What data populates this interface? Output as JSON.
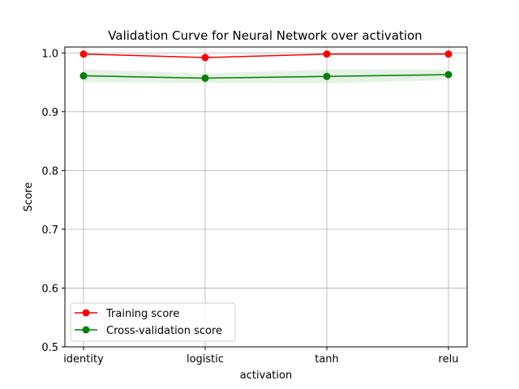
{
  "chart_data": {
    "type": "line",
    "title": "Validation Curve for Neural Network over activation",
    "xlabel": "activation",
    "ylabel": "Score",
    "categories": [
      "identity",
      "logistic",
      "tanh",
      "relu"
    ],
    "ylim": [
      0.5,
      1.01
    ],
    "yticks": [
      0.5,
      0.6,
      0.7,
      0.8,
      0.9,
      1.0
    ],
    "ytick_labels": [
      "0.5",
      "0.6",
      "0.7",
      "0.8",
      "0.9",
      "1.0"
    ],
    "grid": true,
    "legend_position": "lower-left",
    "series": [
      {
        "name": "Training score",
        "color": "#ff0000",
        "values": [
          0.998,
          0.992,
          0.998,
          0.998
        ],
        "band": [
          0.0,
          0.0,
          0.0,
          0.0
        ]
      },
      {
        "name": "Cross-validation score",
        "color": "#008000",
        "values": [
          0.961,
          0.957,
          0.96,
          0.963
        ],
        "band": [
          0.011,
          0.008,
          0.012,
          0.009
        ]
      }
    ]
  }
}
